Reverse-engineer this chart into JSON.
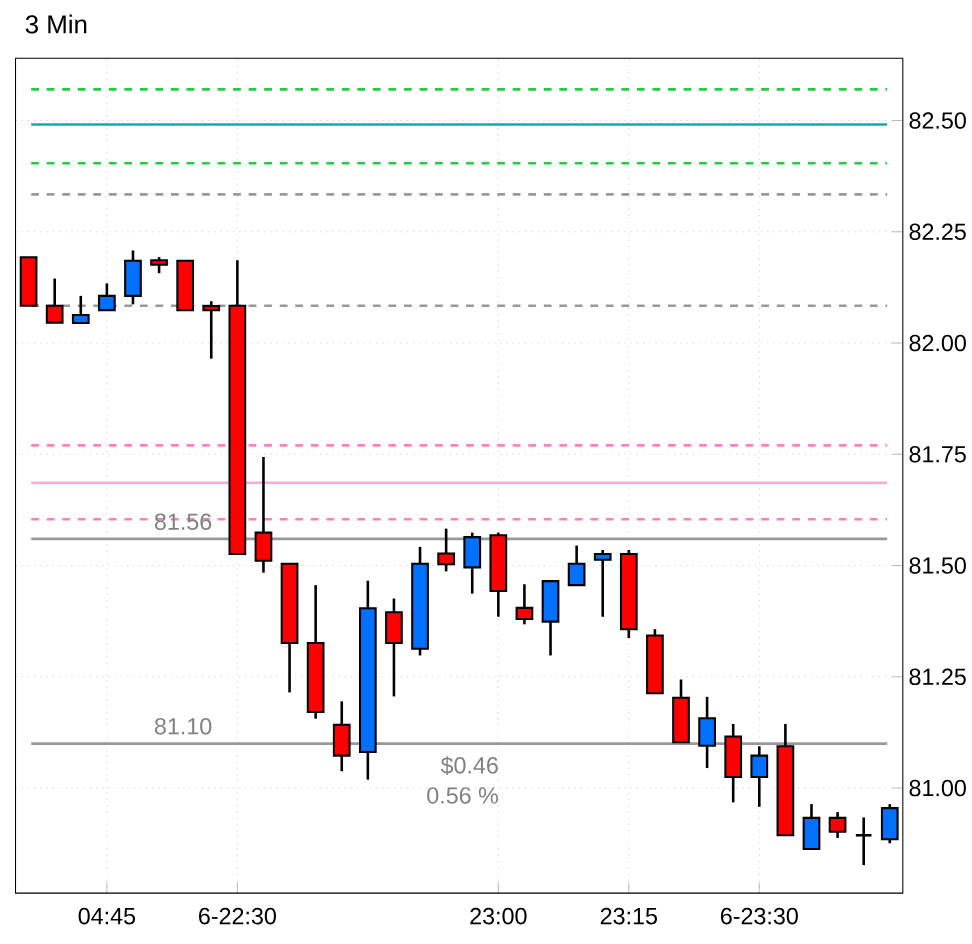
{
  "chart_data": {
    "type": "candlestick",
    "title": "3 Min",
    "categories": [
      null,
      null,
      null,
      "04:45",
      null,
      null,
      null,
      null,
      "6-22:30",
      null,
      null,
      null,
      null,
      null,
      null,
      null,
      null,
      null,
      "23:00",
      null,
      null,
      null,
      null,
      "23:15",
      null,
      null,
      null,
      null,
      "6-23:30",
      null,
      null,
      null,
      null,
      null
    ],
    "ohlc": [
      [
        82.193,
        82.193,
        82.084,
        82.084
      ],
      [
        82.084,
        82.145,
        82.046,
        82.046
      ],
      [
        82.045,
        82.106,
        82.045,
        82.063
      ],
      [
        82.074,
        82.134,
        82.074,
        82.106
      ],
      [
        82.106,
        82.208,
        82.087,
        82.185
      ],
      [
        82.186,
        82.193,
        82.157,
        82.176
      ],
      [
        82.185,
        82.185,
        82.074,
        82.074
      ],
      [
        82.083,
        82.094,
        81.965,
        82.074
      ],
      [
        82.084,
        82.186,
        81.526,
        81.526
      ],
      [
        81.574,
        81.744,
        81.484,
        81.511
      ],
      [
        81.504,
        81.504,
        81.215,
        81.326
      ],
      [
        81.326,
        81.456,
        81.156,
        81.171
      ],
      [
        81.142,
        81.195,
        81.038,
        81.073
      ],
      [
        81.081,
        81.466,
        81.019,
        81.404
      ],
      [
        81.395,
        81.426,
        81.206,
        81.326
      ],
      [
        81.313,
        81.542,
        81.298,
        81.504
      ],
      [
        81.527,
        81.583,
        81.487,
        81.503
      ],
      [
        81.496,
        81.574,
        81.437,
        81.564
      ],
      [
        81.568,
        81.574,
        81.385,
        81.443
      ],
      [
        81.405,
        81.458,
        81.368,
        81.38
      ],
      [
        81.374,
        81.465,
        81.298,
        81.465
      ],
      [
        81.456,
        81.545,
        81.456,
        81.504
      ],
      [
        81.513,
        81.535,
        81.385,
        81.526
      ],
      [
        81.526,
        81.535,
        81.337,
        81.357
      ],
      [
        81.343,
        81.357,
        81.213,
        81.213
      ],
      [
        81.203,
        81.244,
        81.103,
        81.103
      ],
      [
        81.095,
        81.205,
        81.045,
        81.157
      ],
      [
        81.116,
        81.144,
        80.968,
        81.025
      ],
      [
        81.025,
        81.094,
        80.958,
        81.073
      ],
      [
        81.094,
        81.144,
        80.894,
        80.894
      ],
      [
        80.863,
        80.964,
        80.863,
        80.933
      ],
      [
        80.933,
        80.946,
        80.888,
        80.902
      ],
      [
        80.894,
        80.934,
        80.827,
        80.894
      ],
      [
        80.885,
        80.964,
        80.876,
        80.955
      ]
    ],
    "colors": [
      "#ff0000",
      "#ff0000",
      "#0070ff",
      "#0070ff",
      "#0070ff",
      "#ff0000",
      "#ff0000",
      "#ff0000",
      "#ff0000",
      "#ff0000",
      "#ff0000",
      "#ff0000",
      "#ff0000",
      "#0070ff",
      "#ff0000",
      "#0070ff",
      "#ff0000",
      "#0070ff",
      "#ff0000",
      "#ff0000",
      "#0070ff",
      "#0070ff",
      "#0070ff",
      "#ff0000",
      "#ff0000",
      "#ff0000",
      "#0070ff",
      "#ff0000",
      "#0070ff",
      "#ff0000",
      "#0070ff",
      "#ff0000",
      "#000000",
      "#0070ff"
    ],
    "ylim": [
      80.764,
      82.64
    ],
    "yticks": [
      {
        "value": 81,
        "label": "81.00"
      },
      {
        "value": 81.25,
        "label": "81.25"
      },
      {
        "value": 81.5,
        "label": "81.50"
      },
      {
        "value": 81.75,
        "label": "81.75"
      },
      {
        "value": 82,
        "label": "82.00"
      },
      {
        "value": 82.25,
        "label": "82.25"
      },
      {
        "value": 82.5,
        "label": "82.50"
      }
    ],
    "grid": true,
    "ref_lines": [
      {
        "axis": "y",
        "value": 82.57,
        "color": "#22cc44",
        "line_style": "dashed"
      },
      {
        "axis": "y",
        "value": 82.491,
        "color": "#11aab8",
        "line_style": "solid"
      },
      {
        "axis": "y",
        "value": 82.404,
        "color": "#22cc44",
        "line_style": "dashed"
      },
      {
        "axis": "y",
        "value": 82.334,
        "color": "#999999",
        "line_style": "dashed"
      },
      {
        "axis": "y",
        "value": 82.084,
        "color": "#999999",
        "line_style": "dashed"
      },
      {
        "axis": "y",
        "value": 81.77,
        "color": "#ff7fbf",
        "line_style": "dashed"
      },
      {
        "axis": "y",
        "value": 81.686,
        "color": "#ffaad4",
        "line_style": "solid"
      },
      {
        "axis": "y",
        "value": 81.604,
        "color": "#ff7fbf",
        "line_style": "dashed"
      },
      {
        "axis": "y",
        "value": 81.56,
        "color": "#999999",
        "line_style": "solid"
      },
      {
        "axis": "y",
        "value": 81.1,
        "color": "#999999",
        "line_style": "solid"
      }
    ],
    "annotations": [
      "$0.46",
      "0.56 %",
      "81.56",
      "81.10"
    ]
  }
}
